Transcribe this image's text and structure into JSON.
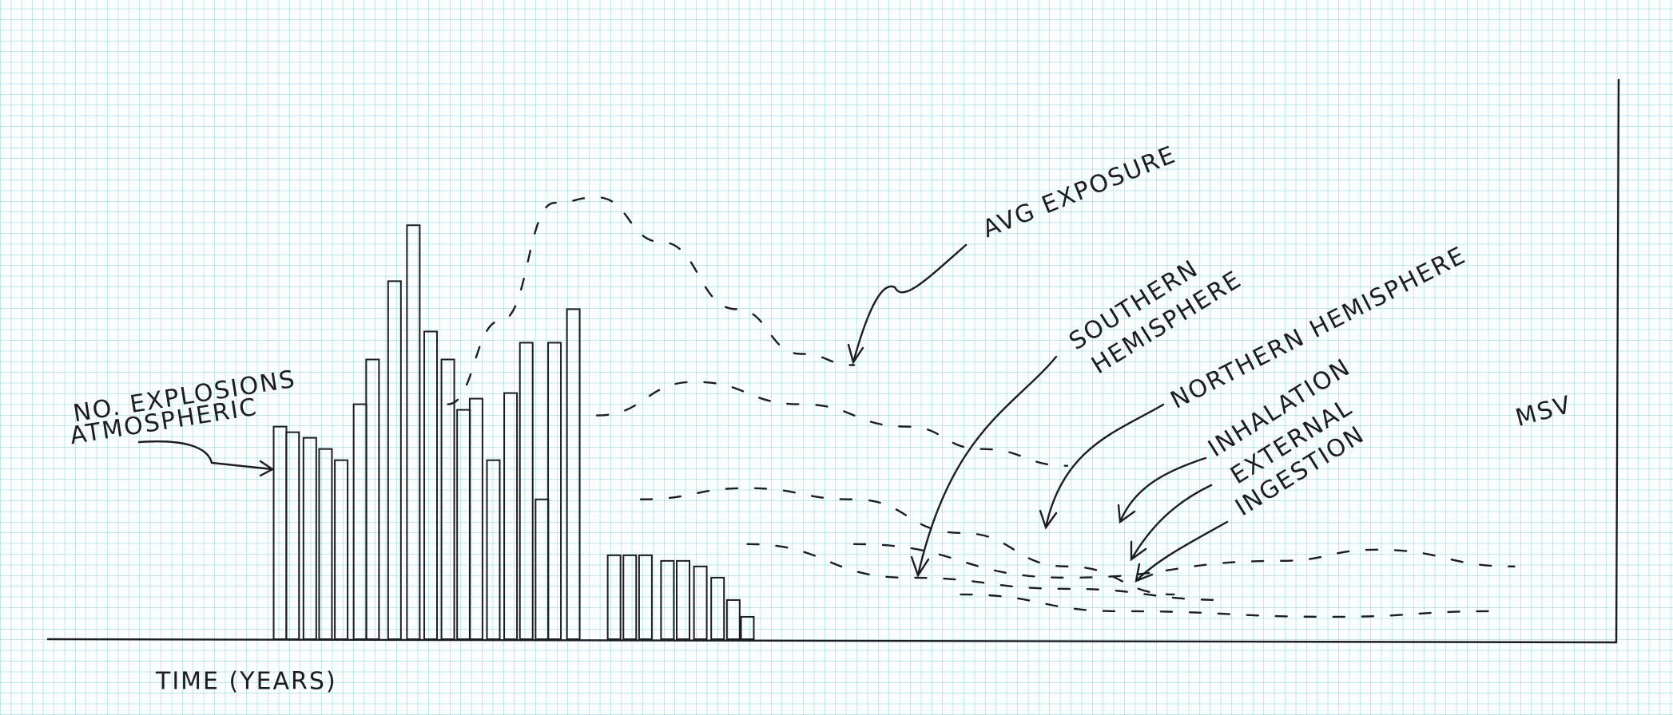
{
  "chart_data": {
    "type": "bar",
    "x_label": "TIME (YEARS)",
    "xlim": [
      0,
      100
    ],
    "ylim": [
      0,
      100
    ],
    "annotations": [
      "NO. EXPLOSIONS",
      "ATMOSPHERIC",
      "AVG EXPOSURE",
      "SOUTHERN",
      "HEMISPHERE",
      "NORTHERN HEMISPHERE",
      "INHALATION",
      "EXTERNAL",
      "INGESTION",
      "MSV"
    ],
    "bars": {
      "color": "#1c1c22",
      "x": [
        14.8,
        15.6,
        16.7,
        17.7,
        18.7,
        19.9,
        20.7,
        22.1,
        23.3,
        24.4,
        25.5,
        26.5,
        27.3,
        28.4,
        29.5,
        30.5,
        31.5,
        32.3,
        33.5,
        36.1,
        37.1,
        38.1,
        39.5,
        40.5,
        41.6,
        42.7,
        43.7,
        44.6
      ],
      "values": [
        38,
        37,
        36,
        34,
        32,
        42,
        50,
        64,
        74,
        55,
        50,
        41,
        43,
        32,
        44,
        53,
        25,
        53,
        59,
        15,
        15,
        15,
        14,
        14,
        13,
        11,
        7,
        4
      ]
    },
    "series": [
      {
        "color": "#1c1c22",
        "x": [
          25.5,
          28.9,
          32.3,
          35.0,
          39.1,
          43.9,
          48.0,
          51.4
        ],
        "values": [
          42,
          57,
          78,
          79,
          71,
          59,
          51,
          49
        ]
      },
      {
        "color": "#1c1c22",
        "x": [
          35.0,
          41.2,
          48.0,
          54.8,
          59.5,
          65.0
        ],
        "values": [
          40,
          46,
          42,
          38,
          34,
          31
        ]
      },
      {
        "color": "#1c1c22",
        "x": [
          37.8,
          44.6,
          51.4,
          58.2,
          65.0,
          71.8
        ],
        "values": [
          25,
          27,
          25,
          19,
          13,
          8
        ]
      },
      {
        "color": "#1c1c22",
        "x": [
          44.6,
          54.8,
          65.0,
          75.2
        ],
        "values": [
          17,
          11,
          9,
          7
        ]
      },
      {
        "color": "#1c1c22",
        "x": [
          51.4,
          65.0,
          78.6,
          84.7,
          93.5
        ],
        "values": [
          17,
          11,
          14,
          16,
          13
        ]
      },
      {
        "color": "#1c1c22",
        "x": [
          58.2,
          68.4,
          82.0,
          92.2
        ],
        "values": [
          8,
          5,
          4,
          5
        ]
      }
    ]
  }
}
